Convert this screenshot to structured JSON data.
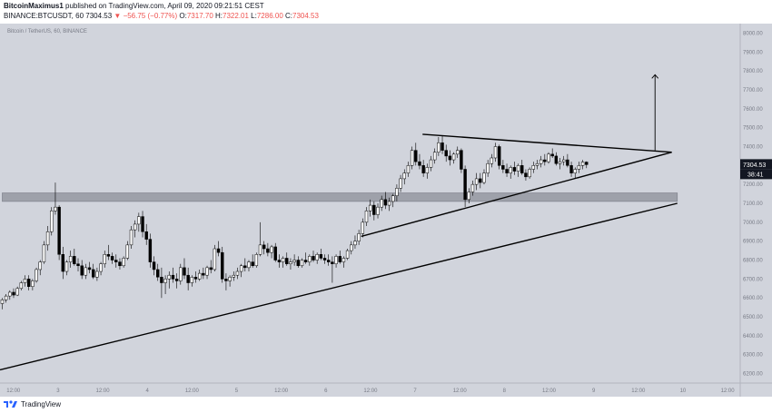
{
  "header": {
    "author": "BitcoinMaximus1",
    "published_text": "published on TradingView.com, April 09, 2020 09:21:51 CEST",
    "symbol_line": "BINANCE:BTCUSDT, 60",
    "last": "7304.53",
    "change": "▼ −56.75 (−0.77%)",
    "o_label": "O:",
    "o_value": "7317.70",
    "h_label": "H:",
    "h_value": "7322.01",
    "l_label": "L:",
    "l_value": "7286.00",
    "c_label": "C:",
    "c_value": "7304.53"
  },
  "footer": {
    "logo_text": "TradingView"
  },
  "colors": {
    "background": "#d1d4dc",
    "zone": "#9598a1",
    "lines": "#000000",
    "label_bg": "#131722",
    "label_text": "#ffffff"
  },
  "chart_data": {
    "type": "candlestick",
    "title": "Bitcoin / TetherUS, 60, BINANCE",
    "ylim": [
      6150,
      8050
    ],
    "y_ticks": [
      6200,
      6300,
      6400,
      6500,
      6600,
      6700,
      6800,
      6900,
      7000,
      7100,
      7200,
      7300,
      7400,
      7500,
      7600,
      7700,
      7800,
      7900,
      8000
    ],
    "x_ticks": [
      {
        "h": 0,
        "label": "12:00"
      },
      {
        "h": 12,
        "label": "3"
      },
      {
        "h": 24,
        "label": "12:00"
      },
      {
        "h": 36,
        "label": "4"
      },
      {
        "h": 48,
        "label": "12:00"
      },
      {
        "h": 60,
        "label": "5"
      },
      {
        "h": 72,
        "label": "12:00"
      },
      {
        "h": 84,
        "label": "6"
      },
      {
        "h": 96,
        "label": "12:00"
      },
      {
        "h": 108,
        "label": "7"
      },
      {
        "h": 120,
        "label": "12:00"
      },
      {
        "h": 132,
        "label": "8"
      },
      {
        "h": 144,
        "label": "12:00"
      },
      {
        "h": 156,
        "label": "9"
      },
      {
        "h": 168,
        "label": "12:00"
      },
      {
        "h": 180,
        "label": "10"
      },
      {
        "h": 192,
        "label": "12:00"
      }
    ],
    "x_range_hours": [
      -3.6,
      195.4
    ],
    "price_label": "7304.53",
    "timer_label": "38:41",
    "last_price": 7304.53,
    "zone": {
      "from_h": -3.0,
      "to_h": 178.5,
      "low": 7110,
      "high": 7155
    },
    "trendlines": [
      {
        "name": "long-support",
        "h1": -3.6,
        "p1": 6220,
        "h2": 178.5,
        "p2": 7100
      },
      {
        "name": "triangle-upper",
        "h1": 110,
        "p1": 7465,
        "h2": 177,
        "p2": 7370
      },
      {
        "name": "triangle-lower",
        "h1": 93.5,
        "p1": 6925,
        "h2": 177,
        "p2": 7370
      }
    ],
    "target_arrow": {
      "h": 172.5,
      "from": 7380,
      "to": 7780
    },
    "candles": [
      [
        6570,
        6600,
        6540,
        6590
      ],
      [
        6590,
        6620,
        6575,
        6610
      ],
      [
        6610,
        6640,
        6590,
        6630
      ],
      [
        6630,
        6650,
        6600,
        6615
      ],
      [
        6615,
        6660,
        6610,
        6650
      ],
      [
        6650,
        6690,
        6640,
        6680
      ],
      [
        6680,
        6720,
        6660,
        6700
      ],
      [
        6700,
        6720,
        6640,
        6660
      ],
      [
        6660,
        6700,
        6640,
        6690
      ],
      [
        6690,
        6760,
        6680,
        6750
      ],
      [
        6750,
        6800,
        6720,
        6790
      ],
      [
        6790,
        6900,
        6780,
        6880
      ],
      [
        6880,
        6980,
        6850,
        6950
      ],
      [
        6950,
        7080,
        6930,
        7060
      ],
      [
        7060,
        7210,
        7040,
        7080
      ],
      [
        7080,
        7090,
        6800,
        6830
      ],
      [
        6830,
        6870,
        6700,
        6740
      ],
      [
        6740,
        6800,
        6720,
        6790
      ],
      [
        6790,
        6850,
        6760,
        6820
      ],
      [
        6820,
        6860,
        6770,
        6780
      ],
      [
        6780,
        6810,
        6740,
        6770
      ],
      [
        6770,
        6800,
        6700,
        6720
      ],
      [
        6720,
        6780,
        6700,
        6760
      ],
      [
        6760,
        6790,
        6730,
        6750
      ],
      [
        6750,
        6780,
        6700,
        6710
      ],
      [
        6710,
        6760,
        6690,
        6740
      ],
      [
        6740,
        6790,
        6720,
        6780
      ],
      [
        6780,
        6850,
        6760,
        6830
      ],
      [
        6830,
        6880,
        6800,
        6820
      ],
      [
        6820,
        6840,
        6780,
        6800
      ],
      [
        6800,
        6830,
        6760,
        6790
      ],
      [
        6790,
        6810,
        6750,
        6770
      ],
      [
        6770,
        6820,
        6760,
        6810
      ],
      [
        6810,
        6900,
        6800,
        6880
      ],
      [
        6880,
        6980,
        6860,
        6960
      ],
      [
        6960,
        7010,
        6920,
        6990
      ],
      [
        6990,
        7050,
        6950,
        7030
      ],
      [
        7030,
        7060,
        6920,
        6950
      ],
      [
        6950,
        6990,
        6880,
        6910
      ],
      [
        6910,
        6940,
        6760,
        6790
      ],
      [
        6790,
        6820,
        6720,
        6750
      ],
      [
        6750,
        6780,
        6690,
        6710
      ],
      [
        6710,
        6760,
        6600,
        6680
      ],
      [
        6680,
        6720,
        6620,
        6700
      ],
      [
        6700,
        6740,
        6650,
        6720
      ],
      [
        6720,
        6760,
        6680,
        6700
      ],
      [
        6700,
        6730,
        6650,
        6690
      ],
      [
        6690,
        6780,
        6670,
        6760
      ],
      [
        6760,
        6810,
        6700,
        6720
      ],
      [
        6720,
        6760,
        6640,
        6680
      ],
      [
        6680,
        6720,
        6660,
        6710
      ],
      [
        6710,
        6740,
        6680,
        6700
      ],
      [
        6700,
        6750,
        6690,
        6730
      ],
      [
        6730,
        6760,
        6700,
        6720
      ],
      [
        6720,
        6770,
        6700,
        6760
      ],
      [
        6760,
        6800,
        6730,
        6750
      ],
      [
        6750,
        6880,
        6740,
        6860
      ],
      [
        6860,
        6900,
        6820,
        6840
      ],
      [
        6840,
        6870,
        6680,
        6700
      ],
      [
        6700,
        6730,
        6640,
        6690
      ],
      [
        6690,
        6720,
        6660,
        6710
      ],
      [
        6710,
        6740,
        6690,
        6720
      ],
      [
        6720,
        6760,
        6700,
        6740
      ],
      [
        6740,
        6780,
        6710,
        6770
      ],
      [
        6770,
        6810,
        6740,
        6760
      ],
      [
        6760,
        6800,
        6740,
        6790
      ],
      [
        6790,
        6830,
        6760,
        6770
      ],
      [
        6770,
        6840,
        6760,
        6830
      ],
      [
        6830,
        7000,
        6820,
        6880
      ],
      [
        6880,
        6900,
        6830,
        6860
      ],
      [
        6860,
        6890,
        6820,
        6840
      ],
      [
        6840,
        6880,
        6810,
        6870
      ],
      [
        6870,
        6890,
        6790,
        6800
      ],
      [
        6800,
        6830,
        6760,
        6790
      ],
      [
        6790,
        6820,
        6760,
        6810
      ],
      [
        6810,
        6840,
        6770,
        6780
      ],
      [
        6780,
        6810,
        6750,
        6790
      ],
      [
        6790,
        6830,
        6770,
        6800
      ],
      [
        6800,
        6820,
        6760,
        6770
      ],
      [
        6770,
        6810,
        6760,
        6800
      ],
      [
        6800,
        6840,
        6780,
        6790
      ],
      [
        6790,
        6830,
        6770,
        6820
      ],
      [
        6820,
        6850,
        6790,
        6800
      ],
      [
        6800,
        6840,
        6780,
        6830
      ],
      [
        6830,
        6860,
        6800,
        6810
      ],
      [
        6810,
        6830,
        6780,
        6800
      ],
      [
        6800,
        6830,
        6770,
        6790
      ],
      [
        6790,
        6820,
        6680,
        6780
      ],
      [
        6780,
        6830,
        6760,
        6820
      ],
      [
        6820,
        6850,
        6780,
        6790
      ],
      [
        6790,
        6820,
        6760,
        6810
      ],
      [
        6810,
        6860,
        6800,
        6850
      ],
      [
        6850,
        6900,
        6830,
        6880
      ],
      [
        6880,
        6930,
        6860,
        6900
      ],
      [
        6900,
        6960,
        6880,
        6940
      ],
      [
        6940,
        7020,
        6920,
        7000
      ],
      [
        7000,
        7080,
        6980,
        7060
      ],
      [
        7060,
        7120,
        7030,
        7090
      ],
      [
        7090,
        7110,
        7010,
        7040
      ],
      [
        7040,
        7100,
        7020,
        7080
      ],
      [
        7080,
        7140,
        7060,
        7120
      ],
      [
        7120,
        7160,
        7070,
        7090
      ],
      [
        7090,
        7130,
        7060,
        7110
      ],
      [
        7110,
        7150,
        7080,
        7140
      ],
      [
        7140,
        7200,
        7110,
        7180
      ],
      [
        7180,
        7250,
        7160,
        7230
      ],
      [
        7230,
        7280,
        7200,
        7260
      ],
      [
        7260,
        7320,
        7240,
        7300
      ],
      [
        7300,
        7400,
        7280,
        7380
      ],
      [
        7380,
        7420,
        7300,
        7320
      ],
      [
        7320,
        7360,
        7280,
        7300
      ],
      [
        7300,
        7330,
        7240,
        7260
      ],
      [
        7260,
        7310,
        7230,
        7290
      ],
      [
        7290,
        7350,
        7270,
        7330
      ],
      [
        7330,
        7390,
        7310,
        7370
      ],
      [
        7370,
        7450,
        7350,
        7420
      ],
      [
        7420,
        7460,
        7360,
        7380
      ],
      [
        7380,
        7410,
        7320,
        7350
      ],
      [
        7350,
        7380,
        7300,
        7330
      ],
      [
        7330,
        7370,
        7310,
        7360
      ],
      [
        7360,
        7400,
        7340,
        7380
      ],
      [
        7380,
        7390,
        7260,
        7280
      ],
      [
        7280,
        7300,
        7080,
        7120
      ],
      [
        7120,
        7180,
        7100,
        7160
      ],
      [
        7160,
        7220,
        7140,
        7200
      ],
      [
        7200,
        7260,
        7170,
        7230
      ],
      [
        7230,
        7260,
        7180,
        7210
      ],
      [
        7210,
        7280,
        7200,
        7260
      ],
      [
        7260,
        7330,
        7240,
        7310
      ],
      [
        7310,
        7360,
        7290,
        7340
      ],
      [
        7340,
        7420,
        7320,
        7400
      ],
      [
        7400,
        7410,
        7280,
        7300
      ],
      [
        7300,
        7330,
        7260,
        7280
      ],
      [
        7280,
        7310,
        7240,
        7260
      ],
      [
        7260,
        7300,
        7230,
        7290
      ],
      [
        7290,
        7320,
        7250,
        7270
      ],
      [
        7270,
        7310,
        7240,
        7300
      ],
      [
        7300,
        7330,
        7250,
        7260
      ],
      [
        7260,
        7280,
        7220,
        7240
      ],
      [
        7240,
        7290,
        7230,
        7280
      ],
      [
        7280,
        7320,
        7260,
        7300
      ],
      [
        7300,
        7330,
        7280,
        7310
      ],
      [
        7310,
        7350,
        7290,
        7330
      ],
      [
        7330,
        7360,
        7300,
        7320
      ],
      [
        7320,
        7370,
        7310,
        7360
      ],
      [
        7360,
        7390,
        7340,
        7350
      ],
      [
        7350,
        7370,
        7300,
        7310
      ],
      [
        7310,
        7340,
        7280,
        7320
      ],
      [
        7320,
        7350,
        7300,
        7330
      ],
      [
        7330,
        7360,
        7290,
        7300
      ],
      [
        7300,
        7320,
        7240,
        7260
      ],
      [
        7260,
        7290,
        7230,
        7280
      ],
      [
        7280,
        7320,
        7260,
        7300
      ],
      [
        7300,
        7330,
        7280,
        7318
      ],
      [
        7318,
        7322,
        7286,
        7304.53
      ]
    ],
    "first_candle_h": -3.0,
    "candle_step_h": 1.02
  }
}
